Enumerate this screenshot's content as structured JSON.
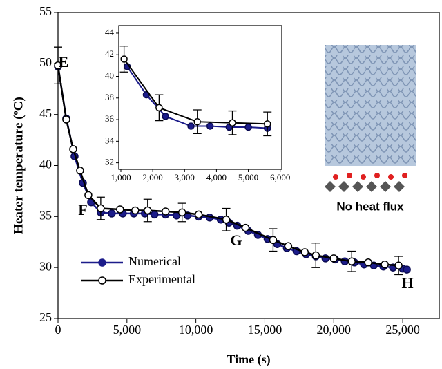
{
  "chart_data": [
    {
      "type": "line",
      "xlabel": "Time (s)",
      "ylabel": "Heater temperature (ºC)",
      "xlim": [
        0,
        27650
      ],
      "ylim": [
        25,
        55
      ],
      "xticks": [
        0,
        {
          "value": 5000,
          "label": "5,000"
        },
        {
          "value": 10000,
          "label": "10,000"
        },
        {
          "value": 15000,
          "label": "15,000"
        },
        {
          "value": 20000,
          "label": "20,000"
        },
        {
          "value": 25000,
          "label": "25,000"
        }
      ],
      "yticks": [
        25,
        30,
        35,
        40,
        45,
        50,
        55
      ],
      "annotations": [
        "E",
        "F",
        "G",
        "H",
        "No heat flux"
      ],
      "series": [
        {
          "name": "Numerical",
          "color": "#1c1c8a",
          "marker": "filled",
          "x": [
            0,
            600,
            1200,
            1800,
            2400,
            3100,
            3900,
            4700,
            5500,
            6300,
            7000,
            7800,
            8600,
            9400,
            10200,
            11000,
            11800,
            12400,
            13000,
            13800,
            14500,
            15200,
            15900,
            16600,
            17300,
            18000,
            18700,
            19400,
            20100,
            20800,
            21500,
            22200,
            22900,
            23600,
            24300,
            25000,
            25300
          ],
          "values": [
            49.7,
            44.6,
            40.9,
            38.3,
            36.4,
            35.4,
            35.3,
            35.3,
            35.3,
            35.3,
            35.2,
            35.2,
            35.1,
            35.1,
            35.0,
            34.9,
            34.7,
            34.4,
            34.1,
            33.6,
            33.2,
            32.8,
            32.3,
            31.9,
            31.6,
            31.3,
            31.1,
            30.9,
            30.8,
            30.6,
            30.5,
            30.3,
            30.2,
            30.1,
            30.0,
            29.9,
            29.8
          ]
        },
        {
          "name": "Experimental",
          "color": "#000000",
          "marker": "open",
          "x": [
            0,
            600,
            1100,
            1600,
            2200,
            3100,
            4500,
            5600,
            6500,
            7800,
            9000,
            10200,
            12200,
            13600,
            15600,
            16700,
            17900,
            18700,
            20000,
            21300,
            22500,
            23700,
            24700
          ],
          "values": [
            49.8,
            44.5,
            41.6,
            39.5,
            37.1,
            35.8,
            35.7,
            35.6,
            35.6,
            35.5,
            35.4,
            35.2,
            34.7,
            33.9,
            32.7,
            32.1,
            31.5,
            31.2,
            30.9,
            30.6,
            30.5,
            30.3,
            30.2
          ],
          "errors": [
            1.8,
            null,
            null,
            null,
            null,
            1.1,
            null,
            null,
            1.1,
            null,
            0.9,
            null,
            1.1,
            null,
            1.1,
            null,
            null,
            1.2,
            null,
            1.0,
            null,
            null,
            0.9
          ]
        }
      ]
    },
    {
      "type": "line",
      "xlim": [
        935,
        6050
      ],
      "ylim": [
        31.4,
        44.7
      ],
      "xticks": [
        {
          "value": 1000,
          "label": "1,000"
        },
        {
          "value": 2000,
          "label": "2,000"
        },
        {
          "value": 3000,
          "label": "3,000"
        },
        {
          "value": 4000,
          "label": "4,000"
        },
        {
          "value": 5000,
          "label": "5,000"
        },
        {
          "value": 6000,
          "label": "6,000"
        }
      ],
      "yticks": [
        32,
        34,
        36,
        38,
        40,
        42,
        44
      ],
      "series": [
        {
          "color": "#1c1c8a",
          "marker": "filled",
          "x": [
            1200,
            1800,
            2400,
            3200,
            3800,
            4400,
            5000,
            5600
          ],
          "values": [
            40.9,
            38.3,
            36.3,
            35.4,
            35.4,
            35.3,
            35.3,
            35.2
          ]
        },
        {
          "color": "#000000",
          "marker": "open",
          "x": [
            1100,
            2200,
            3400,
            4500,
            5600
          ],
          "values": [
            41.6,
            37.1,
            35.8,
            35.7,
            35.6
          ],
          "errors": [
            1.2,
            1.2,
            1.1,
            1.1,
            1.1
          ]
        }
      ]
    }
  ]
}
